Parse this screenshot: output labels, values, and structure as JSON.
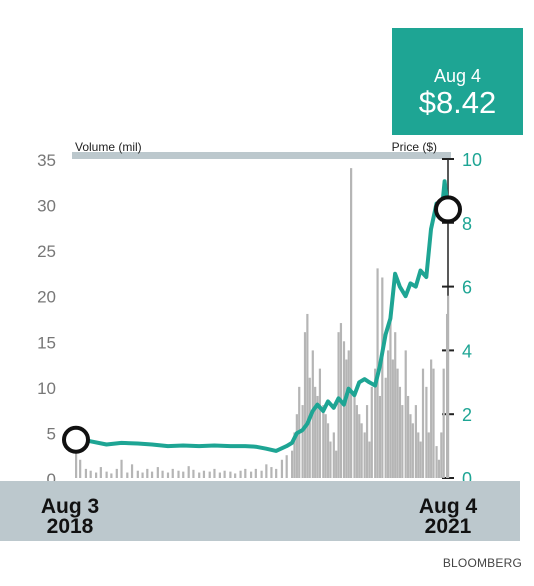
{
  "callout": {
    "date": "Aug 4",
    "price": "$8.42"
  },
  "source": "BLOOMBERG",
  "colors": {
    "price": "#1ea594",
    "volume": "#b5b5b5",
    "band": "#bcc8cd",
    "axis_left": "#777777",
    "axis_right": "#1ea594",
    "callout_bg": "#1ea594"
  },
  "chart_data": {
    "type": "line",
    "title": "",
    "x_start_label": {
      "line1": "Aug 3",
      "line2": "2018"
    },
    "x_end_label": {
      "line1": "Aug 4",
      "line2": "2021"
    },
    "x_range": [
      "2018-08-03",
      "2021-08-04"
    ],
    "y_left": {
      "label": "Volume (mil)",
      "ticks": [
        0,
        5,
        10,
        15,
        20,
        25,
        30,
        35
      ],
      "ylim": [
        0,
        35
      ]
    },
    "y_right": {
      "label": "Price ($)",
      "ticks": [
        0,
        2,
        4,
        6,
        8,
        10
      ],
      "ylim": [
        0,
        10
      ]
    },
    "grid": false,
    "series": [
      {
        "name": "Price ($)",
        "axis": "right",
        "x": [
          "2018-08-03",
          "2018-09-15",
          "2018-11-01",
          "2018-12-15",
          "2019-02-01",
          "2019-03-15",
          "2019-05-01",
          "2019-06-15",
          "2019-08-01",
          "2019-09-15",
          "2019-11-01",
          "2019-12-15",
          "2020-01-15",
          "2020-02-15",
          "2020-03-15",
          "2020-04-15",
          "2020-05-01",
          "2020-05-15",
          "2020-06-01",
          "2020-06-15",
          "2020-07-01",
          "2020-07-15",
          "2020-08-01",
          "2020-08-15",
          "2020-09-01",
          "2020-09-15",
          "2020-10-01",
          "2020-10-15",
          "2020-11-01",
          "2020-11-15",
          "2020-12-01",
          "2020-12-15",
          "2021-01-01",
          "2021-01-15",
          "2021-02-01",
          "2021-02-15",
          "2021-03-01",
          "2021-03-15",
          "2021-04-01",
          "2021-04-15",
          "2021-05-01",
          "2021-05-15",
          "2021-06-01",
          "2021-06-15",
          "2021-07-01",
          "2021-07-15",
          "2021-07-25",
          "2021-08-04"
        ],
        "y": [
          1.2,
          1.15,
          1.05,
          1.1,
          1.08,
          1.05,
          1.0,
          1.02,
          1.0,
          1.02,
          1.0,
          1.0,
          0.98,
          0.92,
          0.85,
          1.0,
          1.1,
          1.4,
          1.5,
          1.7,
          2.1,
          2.3,
          2.1,
          2.4,
          2.2,
          2.5,
          2.3,
          2.8,
          2.6,
          3.0,
          3.1,
          3.0,
          2.9,
          3.5,
          4.5,
          5.0,
          6.4,
          6.0,
          5.7,
          6.1,
          6.0,
          6.5,
          6.3,
          7.8,
          8.6,
          8.2,
          9.3,
          8.42
        ]
      },
      {
        "name": "Volume (mil)",
        "axis": "left",
        "type": "bar",
        "x": [
          "2018-08-03",
          "2018-08-15",
          "2018-09-01",
          "2018-09-15",
          "2018-10-01",
          "2018-10-15",
          "2018-11-01",
          "2018-11-15",
          "2018-12-01",
          "2018-12-15",
          "2019-01-01",
          "2019-01-15",
          "2019-02-01",
          "2019-02-15",
          "2019-03-01",
          "2019-03-15",
          "2019-04-01",
          "2019-04-15",
          "2019-05-01",
          "2019-05-15",
          "2019-06-01",
          "2019-06-15",
          "2019-07-01",
          "2019-07-15",
          "2019-08-01",
          "2019-08-15",
          "2019-09-01",
          "2019-09-15",
          "2019-10-01",
          "2019-10-15",
          "2019-11-01",
          "2019-11-15",
          "2019-12-01",
          "2019-12-15",
          "2020-01-01",
          "2020-01-15",
          "2020-02-01",
          "2020-02-15",
          "2020-03-01",
          "2020-03-15",
          "2020-04-01",
          "2020-04-15",
          "2020-05-01",
          "2020-05-08",
          "2020-05-15",
          "2020-05-22",
          "2020-06-01",
          "2020-06-08",
          "2020-06-15",
          "2020-06-22",
          "2020-07-01",
          "2020-07-08",
          "2020-07-15",
          "2020-07-22",
          "2020-08-01",
          "2020-08-08",
          "2020-08-15",
          "2020-08-22",
          "2020-09-01",
          "2020-09-08",
          "2020-09-15",
          "2020-09-22",
          "2020-10-01",
          "2020-10-08",
          "2020-10-15",
          "2020-10-22",
          "2020-11-01",
          "2020-11-08",
          "2020-11-15",
          "2020-11-22",
          "2020-12-01",
          "2020-12-08",
          "2020-12-15",
          "2020-12-22",
          "2021-01-01",
          "2021-01-08",
          "2021-01-15",
          "2021-01-22",
          "2021-02-01",
          "2021-02-08",
          "2021-02-15",
          "2021-02-22",
          "2021-03-01",
          "2021-03-08",
          "2021-03-15",
          "2021-03-22",
          "2021-04-01",
          "2021-04-08",
          "2021-04-15",
          "2021-04-22",
          "2021-05-01",
          "2021-05-08",
          "2021-05-15",
          "2021-05-22",
          "2021-06-01",
          "2021-06-08",
          "2021-06-15",
          "2021-06-22",
          "2021-07-01",
          "2021-07-08",
          "2021-07-15",
          "2021-07-22",
          "2021-08-01",
          "2021-08-04"
        ],
        "values": [
          4.5,
          2.0,
          1.0,
          0.8,
          0.6,
          1.2,
          0.7,
          0.5,
          1.0,
          2.0,
          0.6,
          1.5,
          0.8,
          0.6,
          1.0,
          0.7,
          1.2,
          0.8,
          0.6,
          1.0,
          0.8,
          0.7,
          1.3,
          0.9,
          0.6,
          0.8,
          0.7,
          1.0,
          0.6,
          0.8,
          0.7,
          0.5,
          0.8,
          1.0,
          0.7,
          1.0,
          0.8,
          1.5,
          1.2,
          1.0,
          2.0,
          2.5,
          3.0,
          5.0,
          7.0,
          10.0,
          8.0,
          16.0,
          18.0,
          11.0,
          14.0,
          10.0,
          9.0,
          12.0,
          8.0,
          7.0,
          6.0,
          4.0,
          5.0,
          3.0,
          16.0,
          17.0,
          15.0,
          13.0,
          14.0,
          34.0,
          9.0,
          8.0,
          7.0,
          6.0,
          5.0,
          8.0,
          4.0,
          10.0,
          12.0,
          23.0,
          9.0,
          22.0,
          11.0,
          14.0,
          18.0,
          13.0,
          16.0,
          12.0,
          10.0,
          8.0,
          14.0,
          9.0,
          7.0,
          6.0,
          8.0,
          5.0,
          4.0,
          12.0,
          10.0,
          5.0,
          13.0,
          12.0,
          3.5,
          2.0,
          5.0,
          12.0,
          18.0,
          20.0
        ]
      }
    ],
    "markers": [
      {
        "x": "2018-08-03",
        "y": 1.2,
        "axis": "right"
      },
      {
        "x": "2021-08-04",
        "y": 8.42,
        "axis": "right"
      }
    ]
  }
}
